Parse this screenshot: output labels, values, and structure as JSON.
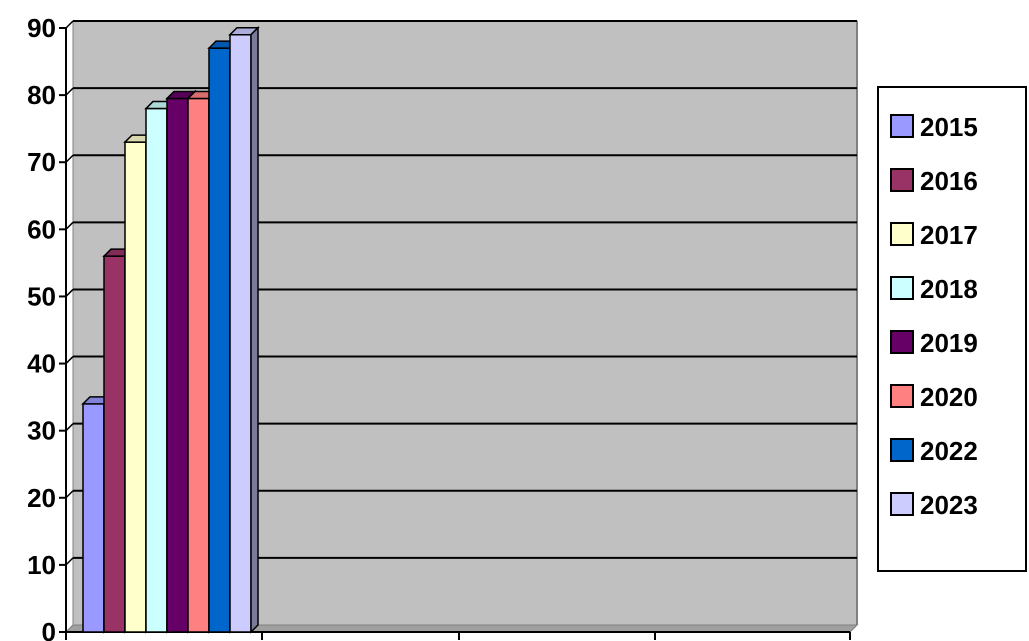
{
  "chart_data": {
    "type": "bar",
    "title": "",
    "xlabel": "",
    "ylabel": "",
    "ylim": [
      0,
      90
    ],
    "yticks": [
      "0",
      "10",
      "20",
      "30",
      "40",
      "50",
      "60",
      "70",
      "80",
      "90"
    ],
    "grid": true,
    "legend_position": "right",
    "categories": [
      ""
    ],
    "series": [
      {
        "name": "2015",
        "values": [
          34
        ],
        "color": "#9999ff"
      },
      {
        "name": "2016",
        "values": [
          56
        ],
        "color": "#993366"
      },
      {
        "name": "2017",
        "values": [
          73
        ],
        "color": "#ffffcc"
      },
      {
        "name": "2018",
        "values": [
          78
        ],
        "color": "#ccffff"
      },
      {
        "name": "2019",
        "values": [
          79.5
        ],
        "color": "#660066"
      },
      {
        "name": "2020",
        "values": [
          79.5
        ],
        "color": "#ff8080"
      },
      {
        "name": "2022",
        "values": [
          87
        ],
        "color": "#0066cc"
      },
      {
        "name": "2023",
        "values": [
          89
        ],
        "color": "#ccccff"
      }
    ],
    "plot_background": "#c0c0c0"
  }
}
